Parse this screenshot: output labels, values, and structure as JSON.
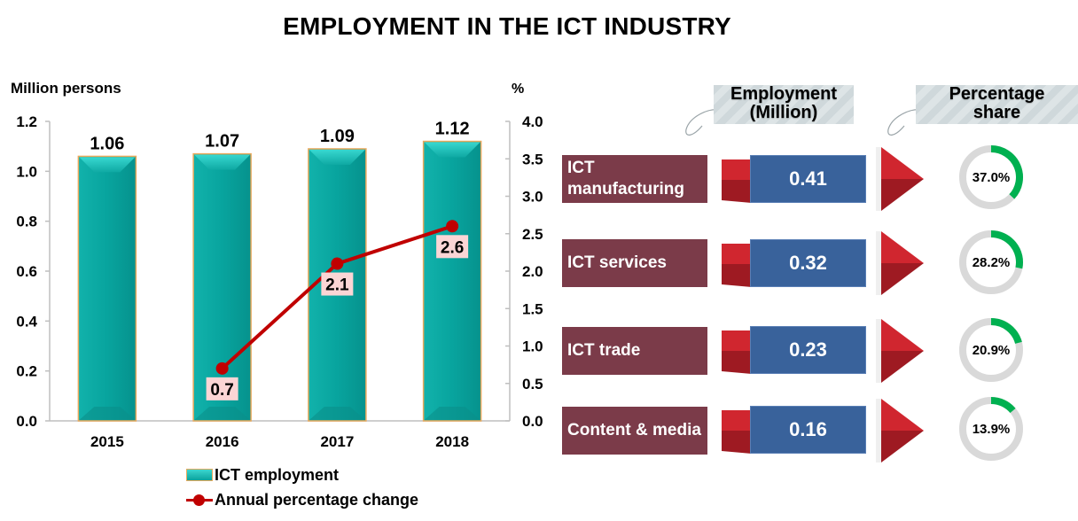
{
  "title": "EMPLOYMENT IN THE ICT INDUSTRY",
  "chart_data": {
    "type": "bar",
    "title": "EMPLOYMENT IN THE ICT INDUSTRY",
    "categories": [
      "2015",
      "2016",
      "2017",
      "2018"
    ],
    "xlabel": "",
    "ylabel": "Million persons",
    "y2label": "%",
    "ylim": [
      0,
      1.2
    ],
    "y2lim": [
      0,
      4.0
    ],
    "yticks": [
      "0.0",
      "0.2",
      "0.4",
      "0.6",
      "0.8",
      "1.0",
      "1.2"
    ],
    "y2ticks": [
      "0.0",
      "0.5",
      "1.0",
      "1.5",
      "2.0",
      "2.5",
      "3.0",
      "3.5",
      "4.0"
    ],
    "grid": false,
    "legend_position": "bottom",
    "series": [
      {
        "name": "ICT employment",
        "type": "bar",
        "axis": "left",
        "values": [
          1.06,
          1.07,
          1.09,
          1.12
        ],
        "labels": [
          "1.06",
          "1.07",
          "1.09",
          "1.12"
        ],
        "color": "#0aa39d"
      },
      {
        "name": "Annual percentage change",
        "type": "line",
        "axis": "right",
        "values": [
          null,
          0.7,
          2.1,
          2.6
        ],
        "labels": [
          "",
          "0.7",
          "2.1",
          "2.6"
        ],
        "color": "#c00000"
      }
    ]
  },
  "breakdown": {
    "employment_header": "Employment (Million)",
    "employment_header_lines": [
      "Employment",
      "(Million)"
    ],
    "share_header_lines": [
      "Percentage",
      "share"
    ],
    "colors": {
      "category": "#7b3b49",
      "value": "#39629b",
      "share": "#00b050",
      "share_track": "#d9d9d9"
    },
    "rows": [
      {
        "category": "ICT manufacturing",
        "category_lines": [
          "ICT",
          "manufacturing"
        ],
        "employment": "0.41",
        "share_label": "37.0%",
        "share": 37.0
      },
      {
        "category": "ICT services",
        "category_lines": [
          "ICT services"
        ],
        "employment": "0.32",
        "share_label": "28.2%",
        "share": 28.2
      },
      {
        "category": "ICT trade",
        "category_lines": [
          "ICT trade"
        ],
        "employment": "0.23",
        "share_label": "20.9%",
        "share": 20.9
      },
      {
        "category": "Content & media",
        "category_lines": [
          "Content & media"
        ],
        "employment": "0.16",
        "share_label": "13.9%",
        "share": 13.9
      }
    ]
  }
}
